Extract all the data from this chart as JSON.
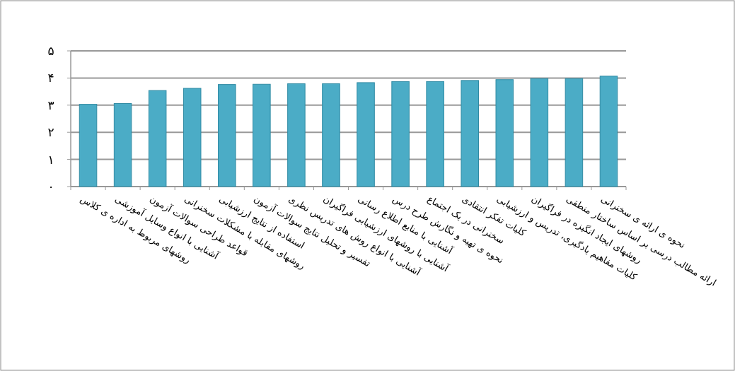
{
  "chart_data": {
    "type": "bar",
    "categories": [
      "روشهای مربوط به اداره ی کلاس",
      "آشنایی با انواع وسایل آموزشی",
      "قواعد طراحی سوالات آزمون",
      "روشهای مقابله با مشکلات سخنرانی",
      "استفاده از نتایج ارزشیابی",
      "تفسیر و تحلیل نتایج سوالات آزمون",
      "آشنایی با انواع روش های تدریس نظری",
      "آشنایی با روشهای ارزشیابی فراگیران",
      "آشنایی با منابع اطلاع رسانی",
      "نحوه ی تهیه و نگارش طرح درس",
      "سخنرانی در یک اجتماع",
      "کلیات تفکر انتقادی",
      "کلیات مفاهیم یادگیری، تدریس و ارزشیابی",
      "روشهای ایجاد انگیزه در فراگیران",
      "ارائه مطالب درسی بر اساس ساختار منطقی",
      "نحوه ی ارائه ی سخنرانی"
    ],
    "values": [
      3.03,
      3.06,
      3.54,
      3.62,
      3.76,
      3.77,
      3.79,
      3.79,
      3.83,
      3.87,
      3.87,
      3.91,
      3.94,
      3.98,
      3.98,
      4.07
    ],
    "color": "#4bacc6",
    "ylim": [
      0,
      5
    ],
    "yticks": [
      {
        "value": 0,
        "label": "۰"
      },
      {
        "value": 1,
        "label": "۱"
      },
      {
        "value": 2,
        "label": "۲"
      },
      {
        "value": 3,
        "label": "۳"
      },
      {
        "value": 4,
        "label": "۴"
      },
      {
        "value": 5,
        "label": "۵"
      }
    ],
    "grid": "y"
  }
}
